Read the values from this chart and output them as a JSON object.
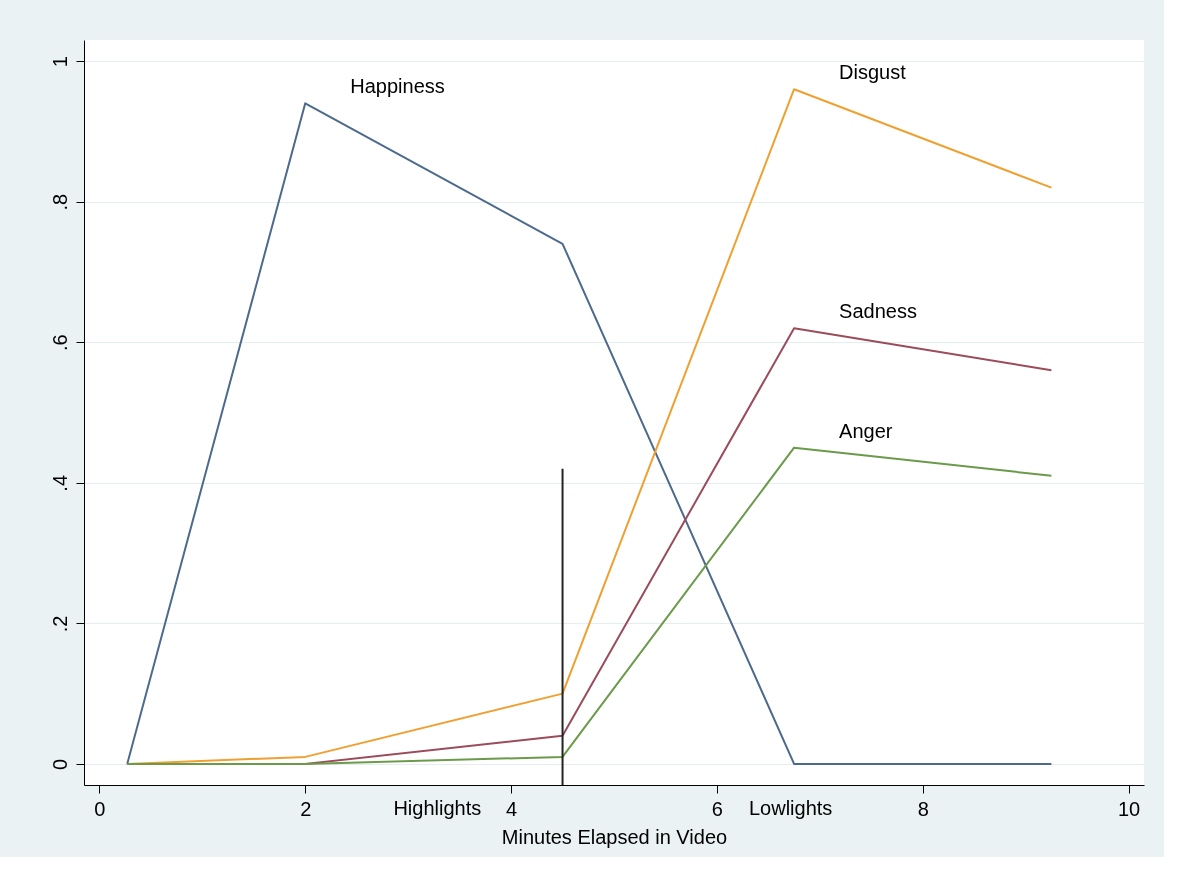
{
  "chart_data": {
    "type": "line",
    "xlabel": "Minutes Elapsed in Video",
    "x": [
      0.27,
      2,
      4.5,
      6.75,
      9.25
    ],
    "series": [
      {
        "name": "Happiness",
        "color": "#4c6a8c",
        "values": [
          0,
          0.94,
          0.74,
          0,
          0
        ]
      },
      {
        "name": "Disgust",
        "color": "#f0a030",
        "values": [
          0,
          0.01,
          0.1,
          0.96,
          0.82
        ]
      },
      {
        "name": "Sadness",
        "color": "#9b4b5a",
        "values": [
          0,
          0,
          0.04,
          0.62,
          0.56
        ]
      },
      {
        "name": "Anger",
        "color": "#6b9a4a",
        "values": [
          0,
          0,
          0.01,
          0.45,
          0.41
        ]
      },
      {
        "color": "#222222",
        "x": [
          4.5,
          4.5
        ],
        "values": [
          -0.03,
          0.42
        ]
      }
    ],
    "annotations": [
      "Highlights",
      "Lowlights"
    ],
    "xlim": [
      -0.15,
      10.15
    ],
    "xticks": [
      {
        "value": 0,
        "label": "0"
      },
      {
        "value": 2,
        "label": "2"
      },
      {
        "value": 4,
        "label": "4"
      },
      {
        "value": 6,
        "label": "6"
      },
      {
        "value": 8,
        "label": "8"
      },
      {
        "value": 10,
        "label": "10"
      }
    ],
    "ylim": [
      -0.03,
      1.03
    ],
    "yticks": [
      {
        "value": 0,
        "label": "0"
      },
      {
        "value": 0.2,
        "label": ".2"
      },
      {
        "value": 0.4,
        "label": ".4"
      },
      {
        "value": 0.6,
        "label": ".6"
      },
      {
        "value": 0.8,
        "label": ".8"
      },
      {
        "value": 1,
        "label": "1"
      }
    ],
    "grid": "y",
    "legend": false,
    "marker": "none",
    "line_style": "solid"
  }
}
